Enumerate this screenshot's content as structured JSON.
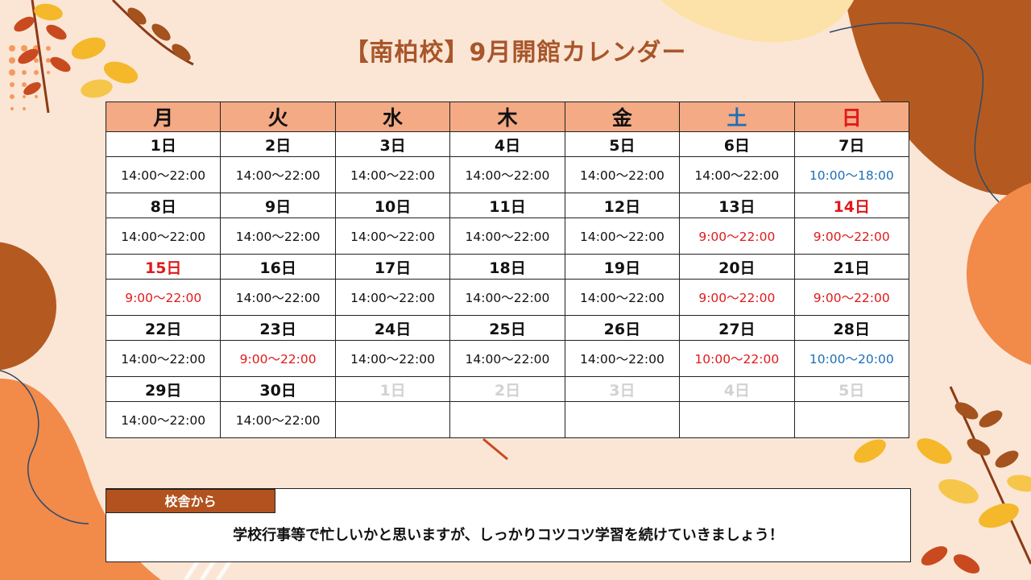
{
  "title": "【南柏校】9月開館カレンダー",
  "weekdays": [
    "月",
    "火",
    "水",
    "木",
    "金",
    "土",
    "日"
  ],
  "weeks": [
    {
      "days": [
        "1日",
        "2日",
        "3日",
        "4日",
        "5日",
        "6日",
        "7日"
      ],
      "hours": [
        "14:00～22:00",
        "14:00～22:00",
        "14:00～22:00",
        "14:00～22:00",
        "14:00～22:00",
        "14:00～22:00",
        "10:00～18:00"
      ]
    },
    {
      "days": [
        "8日",
        "9日",
        "10日",
        "11日",
        "12日",
        "13日",
        "14日"
      ],
      "hours": [
        "14:00～22:00",
        "14:00～22:00",
        "14:00～22:00",
        "14:00～22:00",
        "14:00～22:00",
        "9:00～22:00",
        "9:00～22:00"
      ]
    },
    {
      "days": [
        "15日",
        "16日",
        "17日",
        "18日",
        "19日",
        "20日",
        "21日"
      ],
      "hours": [
        "9:00～22:00",
        "14:00～22:00",
        "14:00～22:00",
        "14:00～22:00",
        "14:00～22:00",
        "9:00～22:00",
        "9:00～22:00"
      ]
    },
    {
      "days": [
        "22日",
        "23日",
        "24日",
        "25日",
        "26日",
        "27日",
        "28日"
      ],
      "hours": [
        "14:00～22:00",
        "9:00～22:00",
        "14:00～22:00",
        "14:00～22:00",
        "14:00～22:00",
        "10:00～22:00",
        "10:00～20:00"
      ]
    },
    {
      "days": [
        "29日",
        "30日",
        "1日",
        "2日",
        "3日",
        "4日",
        "5日"
      ],
      "hours": [
        "14:00～22:00",
        "14:00～22:00",
        "",
        "",
        "",
        "",
        ""
      ]
    }
  ],
  "note": {
    "label": "校舎から",
    "text": "学校行事等で忙しいかと思いますが、しっかりコツコツ学習を続けていきましょう！"
  },
  "colors": {
    "accent": "#a8562a",
    "header_bg": "#f4aa84",
    "holiday_red": "#e01a1a",
    "weekend_blue": "#1e6fb8",
    "next_month_grey": "#d2d2d2"
  }
}
